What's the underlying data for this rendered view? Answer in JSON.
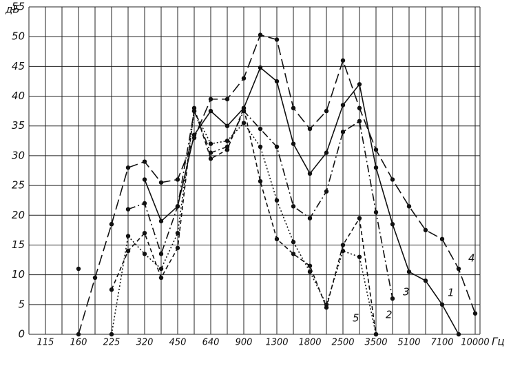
{
  "chart_data": {
    "type": "line",
    "y_label": "дБ",
    "x_unit": "Гц",
    "categories": [
      "115",
      null,
      "160",
      null,
      "225",
      null,
      "320",
      null,
      "450",
      null,
      "640",
      null,
      "900",
      null,
      "1300",
      null,
      "1800",
      null,
      "2500",
      null,
      "3500",
      null,
      "5100",
      null,
      "7100",
      null,
      "10000"
    ],
    "ylim": [
      0,
      55
    ],
    "yticks": [
      0,
      5,
      10,
      15,
      20,
      25,
      30,
      35,
      40,
      45,
      50,
      55
    ],
    "grid": true,
    "series": [
      {
        "name": "1",
        "color": "#111",
        "dash": "solid",
        "values": [
          null,
          null,
          11,
          null,
          18.5,
          null,
          26,
          19,
          21.5,
          33.5,
          37.5,
          35,
          38,
          44.8,
          42.5,
          32,
          27,
          30.5,
          38.5,
          42,
          28,
          18.5,
          10.5,
          9,
          5,
          0,
          null
        ]
      },
      {
        "name": "2",
        "color": "#111",
        "dash": "dashed",
        "values": [
          null,
          null,
          null,
          null,
          7.5,
          14,
          17,
          9.5,
          14.5,
          38,
          29.5,
          31,
          38,
          25.7,
          16,
          13.5,
          11.5,
          4.5,
          15,
          19.5,
          0,
          null,
          null,
          null,
          null,
          null,
          null
        ]
      },
      {
        "name": "3",
        "color": "#111",
        "dash": "dashdot",
        "values": [
          null,
          null,
          null,
          null,
          null,
          21,
          22,
          13.5,
          21.5,
          37.5,
          30.5,
          31.5,
          37.5,
          34.5,
          31.5,
          21.5,
          19.5,
          24,
          34,
          35.8,
          20.5,
          6,
          null,
          null,
          null,
          null,
          null
        ]
      },
      {
        "name": "4",
        "color": "#111",
        "dash": "longdash",
        "values": [
          null,
          null,
          0,
          9.5,
          18.5,
          28,
          29,
          25.5,
          26,
          33,
          39.5,
          39.5,
          43,
          50.3,
          49.5,
          38,
          34.5,
          37.5,
          46,
          38,
          31,
          26,
          21.5,
          17.5,
          16,
          11,
          3.5
        ]
      },
      {
        "name": "5",
        "color": "#111",
        "dash": "dotted",
        "values": [
          null,
          null,
          null,
          null,
          0,
          16.5,
          13.5,
          11,
          17,
          37.5,
          32,
          32.5,
          35.5,
          31.5,
          22.5,
          15.5,
          10.5,
          5,
          14,
          13,
          0,
          null,
          null,
          null,
          null,
          null,
          null
        ]
      }
    ]
  }
}
